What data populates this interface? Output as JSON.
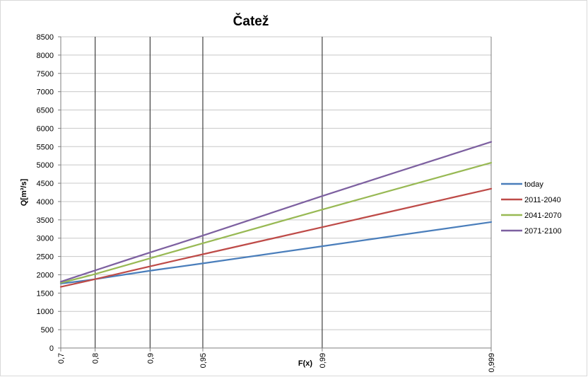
{
  "chart_data": {
    "type": "line",
    "title": "Čatež",
    "xlabel": "F(x)",
    "ylabel": "Q[m³/s]",
    "x_ticks": [
      "0,7",
      "0,8",
      "0,9",
      "0,95",
      "0,99",
      "0,999"
    ],
    "x_scale": "gumbel-probability (ticks at non-exceedance probabilities)",
    "vertical_gridlines_at": [
      "0,8",
      "0,9",
      "0,95",
      "0,99"
    ],
    "ylim": [
      0,
      8500
    ],
    "y_ticks": [
      0,
      500,
      1000,
      1500,
      2000,
      2500,
      3000,
      3500,
      4000,
      4500,
      5000,
      5500,
      6000,
      6500,
      7000,
      7500,
      8000,
      8500
    ],
    "grid": "horizontal at every y tick; vertical at inner x ticks",
    "legend_position": "right",
    "x": [
      0.7,
      0.8,
      0.9,
      0.95,
      0.99,
      0.999
    ],
    "series": [
      {
        "name": "today",
        "color": "#4a7ebb",
        "values": [
          1760,
          1880,
          2110,
          2310,
          2780,
          3440
        ]
      },
      {
        "name": "2011-2040",
        "color": "#be4b48",
        "values": [
          1670,
          1880,
          2230,
          2560,
          3300,
          4350
        ]
      },
      {
        "name": "2041-2070",
        "color": "#98b954",
        "values": [
          1780,
          2020,
          2450,
          2860,
          3780,
          5060
        ]
      },
      {
        "name": "2071-2100",
        "color": "#7d60a0",
        "values": [
          1810,
          2120,
          2610,
          3070,
          4150,
          5630
        ]
      }
    ]
  }
}
